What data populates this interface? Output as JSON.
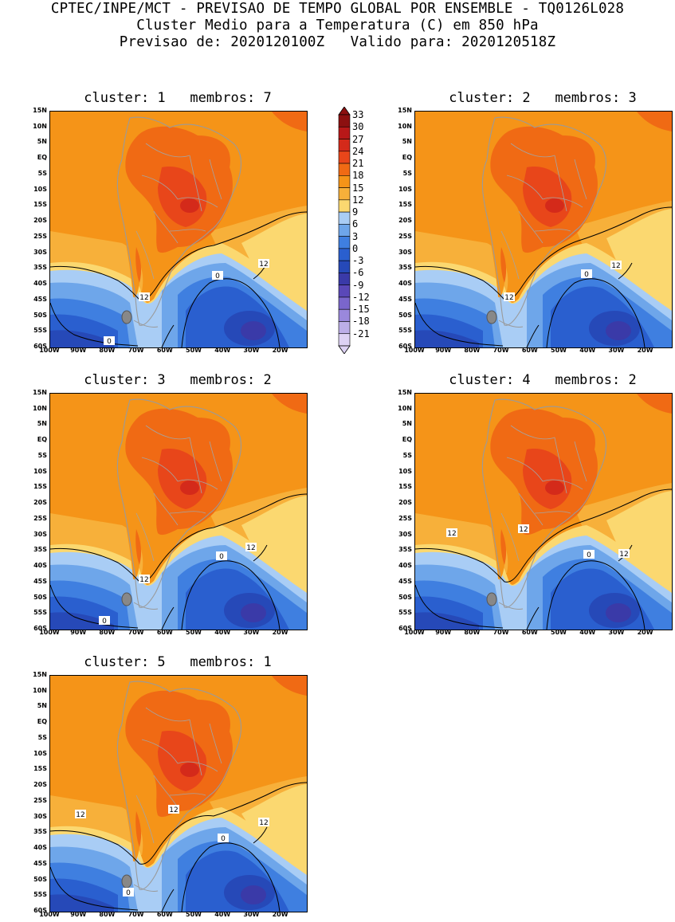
{
  "header": {
    "line1": "CPTEC/INPE/MCT - PREVISAO DE TEMPO GLOBAL POR ENSEMBLE - TQ0126L028",
    "line2": "Cluster Medio para a Temperatura (C) em 850 hPa",
    "line3": "Previsao de: 2020120100Z   Valido para: 2020120518Z"
  },
  "lat_labels": [
    "15N",
    "10N",
    "5N",
    "EQ",
    "5S",
    "10S",
    "15S",
    "20S",
    "25S",
    "30S",
    "35S",
    "40S",
    "45S",
    "50S",
    "55S",
    "60S"
  ],
  "lon_labels": [
    "100W",
    "90W",
    "80W",
    "70W",
    "60W",
    "50W",
    "40W",
    "30W",
    "20W"
  ],
  "colorbar": {
    "labels": [
      "33",
      "30",
      "27",
      "24",
      "21",
      "18",
      "15",
      "12",
      "9",
      "6",
      "3",
      "0",
      "-3",
      "-6",
      "-9",
      "-12",
      "-15",
      "-18",
      "-21"
    ],
    "colors": [
      "#8c1010",
      "#b81818",
      "#d42a1a",
      "#e8461a",
      "#f06a14",
      "#f59418",
      "#f7b03a",
      "#fbd870",
      "#a9cdf5",
      "#6ea6ea",
      "#3f7fe0",
      "#2a5fcf",
      "#2649b8",
      "#3a3aa8",
      "#5a48b8",
      "#7a66cc",
      "#9a88dc",
      "#bcaee8",
      "#ddd2f4"
    ]
  },
  "panels": [
    {
      "title": "cluster: 1   membros: 7",
      "contour_labels": [
        "12",
        "12",
        "0",
        "0"
      ]
    },
    {
      "title": "cluster: 2   membros: 3",
      "contour_labels": [
        "12",
        "12",
        "0"
      ]
    },
    {
      "title": "cluster: 3   membros: 2",
      "contour_labels": [
        "12",
        "12",
        "0",
        "0"
      ]
    },
    {
      "title": "cluster: 4   membros: 2",
      "contour_labels": [
        "12",
        "12",
        "12",
        "0"
      ]
    },
    {
      "title": "cluster: 5   membros: 1",
      "contour_labels": [
        "12",
        "12",
        "12",
        "0",
        "0"
      ]
    }
  ]
}
